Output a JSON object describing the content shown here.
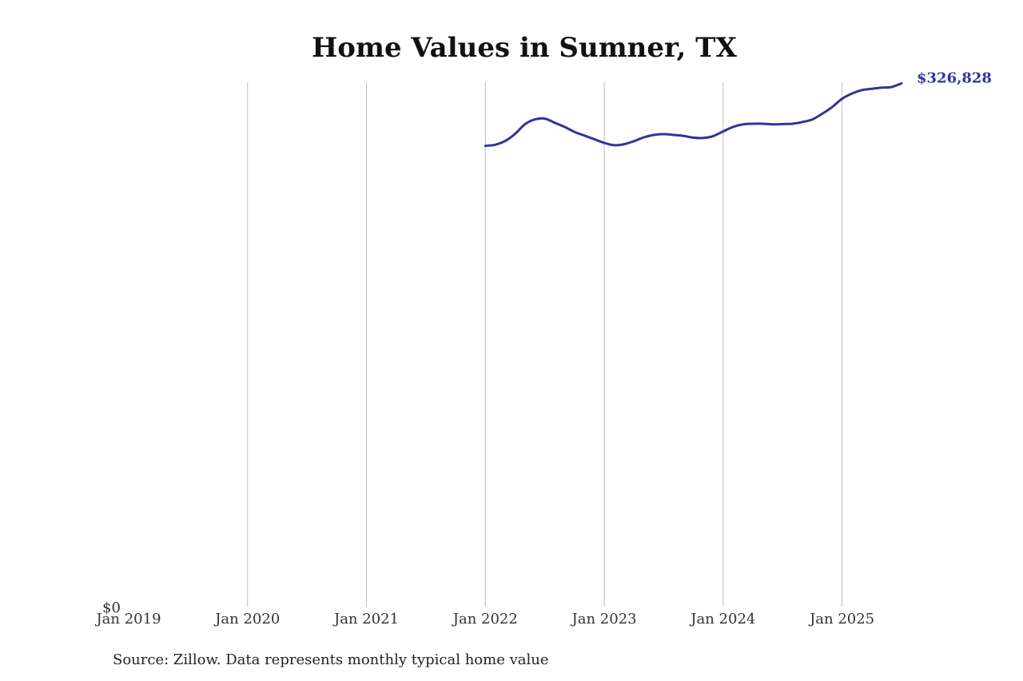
{
  "chart_data": {
    "type": "line",
    "title": "Home Values in Sumner, TX",
    "xlabel": "",
    "ylabel": "",
    "x_tick_labels": [
      "Jan 2019",
      "Jan 2020",
      "Jan 2021",
      "Jan 2022",
      "Jan 2023",
      "Jan 2024",
      "Jan 2025"
    ],
    "y_tick_labels": [
      "$0"
    ],
    "ylim": [
      0,
      330000
    ],
    "xlim": [
      "2019-01",
      "2025-07"
    ],
    "grid": "vertical",
    "end_label": "$326,828",
    "line_color": "#33339a",
    "series": [
      {
        "x": [
          "2022-01",
          "2022-02",
          "2022-03",
          "2022-04",
          "2022-05",
          "2022-06",
          "2022-07",
          "2022-08",
          "2022-09",
          "2022-10",
          "2022-11",
          "2022-12",
          "2023-01",
          "2023-02",
          "2023-03",
          "2023-04",
          "2023-05",
          "2023-06",
          "2023-07",
          "2023-08",
          "2023-09",
          "2023-10",
          "2023-11",
          "2023-12",
          "2024-01",
          "2024-02",
          "2024-03",
          "2024-04",
          "2024-05",
          "2024-06",
          "2024-07",
          "2024-08",
          "2024-09",
          "2024-10",
          "2024-11",
          "2024-12",
          "2025-01",
          "2025-02",
          "2025-03",
          "2025-04",
          "2025-05",
          "2025-06",
          "2025-07"
        ],
        "values": [
          287800,
          288500,
          290800,
          295300,
          301300,
          304300,
          304800,
          302200,
          299600,
          296500,
          294200,
          291900,
          289600,
          288200,
          288800,
          290700,
          293100,
          294600,
          295100,
          294600,
          294000,
          292900,
          292700,
          293900,
          296800,
          299600,
          301200,
          301600,
          301600,
          301200,
          301400,
          301600,
          302700,
          304300,
          307800,
          312000,
          317200,
          320500,
          322600,
          323400,
          324100,
          324500,
          326828
        ]
      }
    ]
  },
  "source": "Source: Zillow. Data represents monthly typical home value"
}
